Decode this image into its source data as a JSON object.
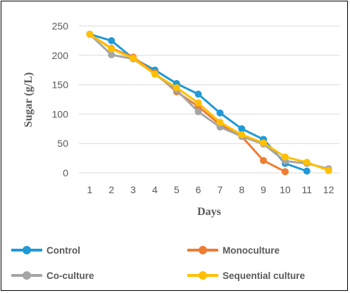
{
  "chart_data": {
    "type": "line",
    "x": [
      1,
      2,
      3,
      4,
      5,
      6,
      7,
      8,
      9,
      10,
      11,
      12
    ],
    "xlabel": "Days",
    "ylabel": "Sugar (g/L)",
    "ylim": [
      0,
      250
    ],
    "yticks": [
      0,
      50,
      100,
      150,
      200,
      250
    ],
    "grid": true,
    "legend_position": "bottom",
    "series": [
      {
        "name": "Control",
        "color": "#1f9ad6",
        "values": [
          236,
          225,
          195,
          175,
          152,
          134,
          102,
          75,
          57,
          16,
          3,
          null
        ]
      },
      {
        "name": "Monoculture",
        "color": "#ed7d31",
        "values": [
          236,
          212,
          197,
          170,
          138,
          113,
          82,
          62,
          21,
          2,
          null,
          null
        ]
      },
      {
        "name": "Co-culture",
        "color": "#a5a5a5",
        "values": [
          236,
          201,
          194,
          168,
          141,
          104,
          78,
          62,
          49,
          20,
          16,
          7
        ]
      },
      {
        "name": "Sequential culture",
        "color": "#ffc000",
        "values": [
          236,
          211,
          195,
          168,
          145,
          119,
          86,
          65,
          51,
          27,
          18,
          4
        ]
      }
    ]
  }
}
